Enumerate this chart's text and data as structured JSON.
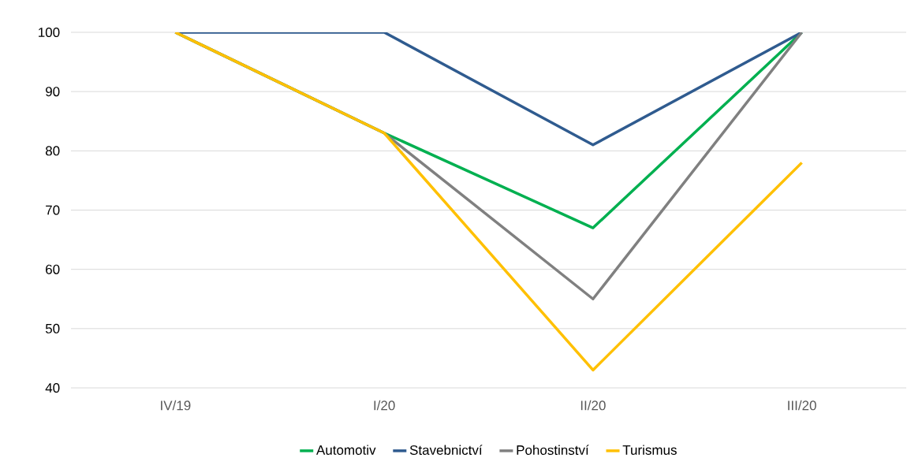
{
  "chart_data": {
    "type": "line",
    "categories": [
      "IV/19",
      "I/20",
      "II/20",
      "III/20"
    ],
    "series": [
      {
        "name": "Automotiv",
        "color": "#00b050",
        "values": [
          100,
          83,
          67,
          100
        ]
      },
      {
        "name": "Stavebnictví",
        "color": "#2f5b8f",
        "values": [
          100,
          100,
          81,
          100
        ]
      },
      {
        "name": "Pohostinství",
        "color": "#808080",
        "values": [
          100,
          83,
          55,
          100
        ]
      },
      {
        "name": "Turismus",
        "color": "#ffc000",
        "values": [
          100,
          83,
          43,
          78
        ]
      }
    ],
    "ylim": [
      40,
      100
    ],
    "yticks": [
      40,
      50,
      60,
      70,
      80,
      90,
      100
    ],
    "grid": "y",
    "legend": "bottom",
    "marker": "none",
    "line_style": "solid"
  }
}
